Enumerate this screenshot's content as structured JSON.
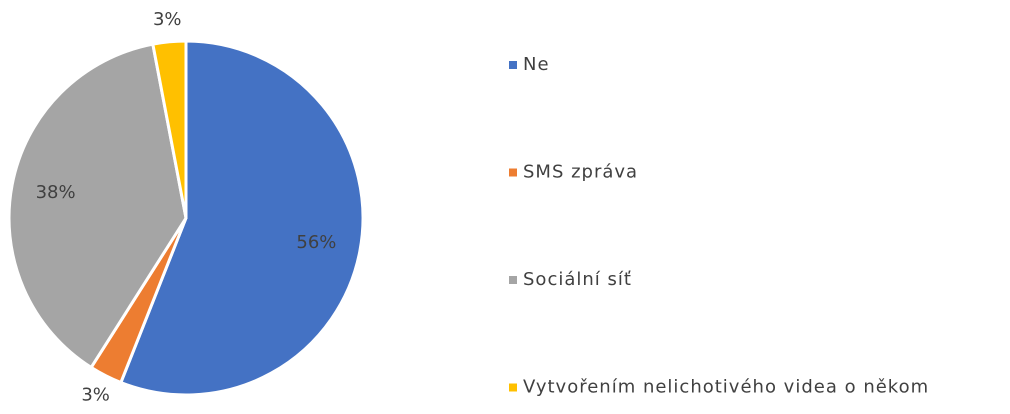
{
  "chart_data": {
    "type": "pie",
    "categories": [
      "Ne",
      "SMS zpráva",
      "Sociální síť",
      "Vytvořením nelichotivého videa o někom"
    ],
    "values": [
      56,
      3,
      38,
      3
    ],
    "value_labels": [
      "56%",
      "3%",
      "38%",
      "3%"
    ],
    "colors": [
      "#4472c4",
      "#ed7d31",
      "#a5a5a5",
      "#ffc000"
    ],
    "legend": "right"
  }
}
